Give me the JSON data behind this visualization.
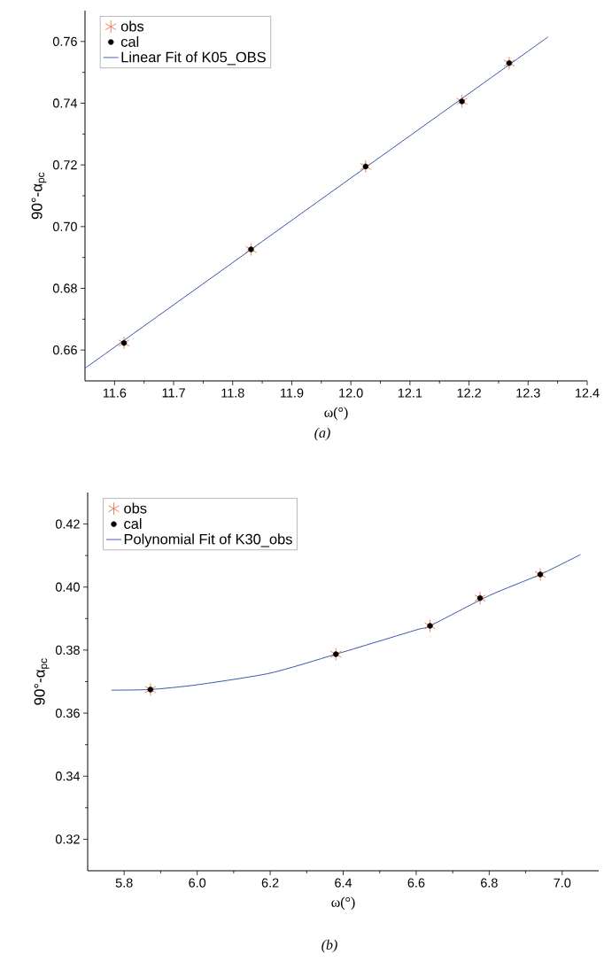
{
  "chart_data": [
    {
      "type": "scatter",
      "xlabel": "ω(°)",
      "ylabel": "90°-α$_{pc}$",
      "annotations": [
        "(a)"
      ],
      "legend": "top left",
      "xlim": [
        11.55,
        12.4
      ],
      "ylim": [
        0.65,
        0.77
      ],
      "xticks": [
        11.6,
        11.7,
        11.8,
        11.9,
        {
          "value": 12.0,
          "label": "12.0"
        },
        12.1,
        12.2,
        12.3,
        12.4
      ],
      "yticks": [
        0.66,
        0.68,
        {
          "value": 0.7,
          "label": "0.70"
        },
        0.72,
        0.74,
        0.76
      ],
      "x": [
        11.616,
        11.831,
        12.025,
        12.188,
        12.268
      ],
      "series": [
        {
          "name": "obs",
          "marker": "cross",
          "color": "#e8643c",
          "values": [
            0.6623,
            0.6926,
            0.7195,
            0.7406,
            0.753
          ]
        },
        {
          "name": "cal",
          "marker": "circle",
          "color": "#000000",
          "values": [
            0.6623,
            0.6926,
            0.7195,
            0.7406,
            0.753
          ]
        },
        {
          "name": "Linear Fit of K05_OBS",
          "type": "line",
          "marker": "none",
          "color": "#3a56a8",
          "x": [
            11.55,
            12.334
          ],
          "values": [
            0.6541,
            0.7615
          ]
        }
      ]
    },
    {
      "type": "scatter",
      "xlabel": "ω(°)",
      "ylabel": "90°-α$_{pc}$",
      "annotations": [
        "(b)"
      ],
      "legend": "top left",
      "xlim": [
        5.7,
        7.1
      ],
      "ylim": [
        0.31,
        0.43
      ],
      "xticks": [
        5.8,
        {
          "value": 6.0,
          "label": "6.0"
        },
        6.2,
        6.4,
        6.6,
        6.8,
        {
          "value": 7.0,
          "label": "7.0"
        }
      ],
      "yticks": [
        0.32,
        0.34,
        0.36,
        0.38,
        {
          "value": 0.4,
          "label": "0.40"
        },
        0.42
      ],
      "x": [
        5.872,
        6.38,
        6.638,
        6.775,
        6.94
      ],
      "series": [
        {
          "name": "obs",
          "marker": "cross",
          "color": "#e8643c",
          "values": [
            0.3675,
            0.3787,
            0.3877,
            0.3965,
            0.404
          ]
        },
        {
          "name": "cal",
          "marker": "circle",
          "color": "#000000",
          "values": [
            0.3675,
            0.3787,
            0.3877,
            0.3965,
            0.404
          ]
        },
        {
          "name": "Polynomial Fit of K30_obs",
          "type": "line",
          "marker": "none",
          "color": "#3a56a8",
          "x": [
            5.765,
            5.872,
            6.0,
            6.2,
            6.38,
            6.6,
            6.638,
            6.8,
            6.94,
            7.05
          ],
          "values": [
            0.3673,
            0.3675,
            0.369,
            0.3727,
            0.3787,
            0.3864,
            0.3877,
            0.3973,
            0.404,
            0.4103
          ]
        }
      ]
    }
  ]
}
